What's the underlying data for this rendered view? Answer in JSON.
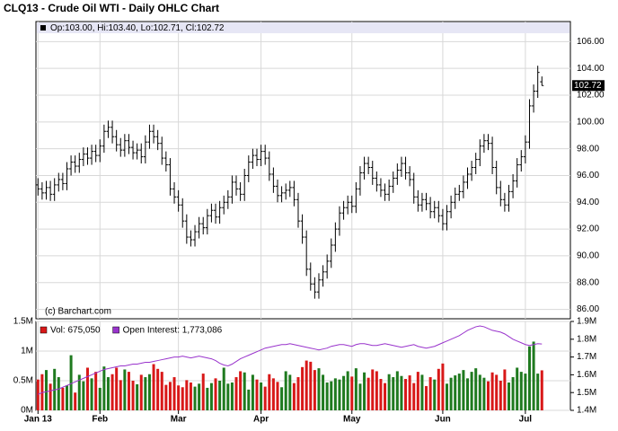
{
  "chart_data": [
    {
      "type": "ohlc",
      "title": "CLQ13 - Crude Oil WTI - Daily OHLC Chart",
      "legend": "Op:103.00, Hi:103.40, Lo:102.71, Cl:102.72",
      "last_label": "102.72",
      "source": "(c) Barchart.com",
      "color": "#000000",
      "legend_color": "#000000",
      "ylim": [
        85.3,
        107.5
      ],
      "yticks": [
        {
          "value": 86,
          "label": "86.00"
        },
        {
          "value": 88,
          "label": "88.00"
        },
        {
          "value": 90,
          "label": "90.00"
        },
        {
          "value": 92,
          "label": "92.00"
        },
        {
          "value": 94,
          "label": "94.00"
        },
        {
          "value": 96,
          "label": "96.00"
        },
        {
          "value": 98,
          "label": "98.00"
        },
        {
          "value": 100,
          "label": "100.00"
        },
        {
          "value": 102,
          "label": "102.00"
        },
        {
          "value": 104,
          "label": "104.00"
        },
        {
          "value": 106,
          "label": "106.00"
        }
      ],
      "grid": true,
      "open": [
        95.3,
        95.0,
        94.7,
        95.1,
        94.6,
        95.3,
        95.7,
        95.4,
        96.5,
        97.0,
        96.7,
        97.2,
        97.6,
        97.3,
        97.8,
        97.5,
        98.2,
        99.3,
        99.6,
        98.9,
        98.3,
        97.9,
        98.6,
        98.1,
        97.7,
        97.9,
        97.4,
        98.5,
        99.3,
        98.9,
        98.4,
        97.3,
        96.8,
        95.0,
        94.4,
        93.8,
        92.6,
        91.4,
        91.2,
        91.8,
        92.4,
        92.1,
        93.0,
        93.4,
        92.9,
        93.6,
        94.0,
        94.4,
        95.5,
        95.0,
        94.6,
        96.0,
        97.0,
        97.5,
        97.2,
        97.8,
        97.3,
        96.1,
        95.2,
        94.5,
        94.7,
        94.9,
        95.1,
        94.2,
        92.6,
        91.4,
        89.0,
        87.9,
        87.3,
        88.2,
        88.8,
        89.6,
        90.8,
        92.0,
        93.2,
        93.6,
        94.0,
        93.7,
        95.0,
        96.2,
        96.9,
        96.6,
        95.8,
        95.3,
        94.9,
        94.6,
        95.2,
        95.8,
        96.4,
        96.9,
        96.2,
        95.7,
        94.4,
        93.8,
        94.2,
        93.9,
        93.3,
        93.6,
        93.0,
        92.4,
        93.3,
        94.0,
        94.6,
        94.8,
        95.5,
        96.1,
        96.6,
        97.2,
        98.2,
        98.6,
        98.4,
        96.6,
        95.1,
        94.2,
        93.8,
        94.8,
        95.6,
        96.8,
        97.4,
        98.5,
        101.2,
        102.3,
        103.0
      ],
      "high": [
        95.8,
        95.5,
        95.6,
        95.6,
        95.8,
        96.2,
        96.2,
        97.0,
        97.5,
        97.5,
        97.7,
        98.1,
        98.1,
        98.3,
        98.3,
        98.7,
        99.8,
        100.1,
        100.1,
        99.4,
        98.8,
        99.1,
        99.1,
        98.6,
        98.4,
        98.4,
        99.0,
        99.8,
        99.8,
        99.4,
        98.9,
        97.8,
        97.3,
        95.5,
        94.9,
        94.3,
        93.1,
        91.9,
        92.3,
        92.9,
        92.9,
        93.5,
        93.9,
        93.9,
        94.1,
        94.5,
        94.9,
        96.0,
        96.0,
        95.5,
        96.5,
        97.5,
        98.0,
        98.0,
        98.3,
        98.3,
        97.8,
        96.6,
        95.7,
        95.2,
        95.4,
        95.6,
        95.6,
        94.7,
        93.1,
        91.9,
        89.5,
        88.4,
        88.7,
        89.3,
        90.1,
        91.3,
        92.5,
        93.7,
        94.1,
        94.5,
        94.5,
        95.5,
        96.7,
        97.4,
        97.4,
        97.1,
        96.3,
        95.8,
        95.4,
        95.7,
        96.3,
        96.9,
        97.4,
        97.4,
        96.7,
        96.2,
        94.9,
        94.7,
        94.7,
        94.4,
        94.1,
        94.1,
        93.5,
        93.8,
        94.5,
        95.1,
        95.3,
        96.0,
        96.6,
        97.1,
        97.7,
        98.7,
        99.1,
        99.1,
        98.9,
        97.1,
        95.6,
        94.7,
        95.3,
        96.1,
        97.3,
        97.9,
        99.0,
        101.7,
        102.8,
        104.2,
        103.4
      ],
      "low": [
        94.5,
        94.2,
        94.2,
        94.1,
        94.1,
        94.8,
        94.9,
        94.9,
        96.0,
        96.2,
        96.2,
        96.7,
        96.8,
        96.8,
        97.0,
        97.0,
        97.7,
        98.8,
        98.4,
        97.8,
        97.4,
        97.4,
        97.6,
        97.2,
        97.2,
        96.9,
        96.9,
        98.0,
        98.4,
        97.9,
        96.8,
        96.3,
        94.5,
        93.9,
        93.3,
        92.1,
        90.9,
        90.7,
        90.7,
        91.3,
        91.6,
        91.6,
        92.5,
        92.4,
        92.4,
        93.1,
        93.5,
        93.9,
        94.5,
        94.1,
        94.1,
        95.5,
        96.5,
        96.7,
        96.7,
        96.8,
        95.6,
        94.7,
        94.0,
        94.0,
        94.2,
        94.4,
        93.7,
        92.1,
        90.9,
        88.5,
        87.4,
        86.8,
        86.8,
        87.7,
        88.3,
        89.1,
        90.3,
        91.5,
        92.7,
        93.1,
        93.2,
        93.2,
        94.5,
        95.7,
        96.1,
        95.3,
        94.8,
        94.4,
        94.1,
        94.1,
        94.7,
        95.3,
        95.9,
        95.7,
        95.2,
        93.9,
        93.3,
        93.3,
        93.4,
        92.8,
        92.8,
        92.5,
        91.9,
        91.9,
        92.8,
        93.5,
        94.1,
        94.3,
        95.0,
        95.6,
        96.1,
        96.7,
        97.7,
        97.9,
        96.1,
        94.6,
        93.7,
        93.3,
        93.3,
        94.3,
        95.1,
        96.3,
        96.9,
        98.0,
        100.7,
        101.8,
        102.71
      ],
      "close": [
        95.0,
        94.7,
        95.1,
        94.6,
        95.3,
        95.7,
        95.4,
        96.5,
        97.0,
        96.7,
        97.2,
        97.6,
        97.3,
        97.8,
        97.5,
        98.2,
        99.3,
        99.6,
        98.9,
        98.3,
        97.9,
        98.6,
        98.1,
        97.7,
        97.9,
        97.4,
        98.5,
        99.3,
        98.9,
        98.4,
        97.3,
        96.8,
        95.0,
        94.4,
        93.8,
        92.6,
        91.4,
        91.2,
        91.8,
        92.4,
        92.1,
        93.0,
        93.4,
        92.9,
        93.6,
        94.0,
        94.4,
        95.5,
        95.0,
        94.6,
        96.0,
        97.0,
        97.5,
        97.2,
        97.8,
        97.3,
        96.1,
        95.2,
        94.5,
        94.7,
        94.9,
        95.1,
        94.2,
        92.6,
        91.4,
        89.0,
        87.9,
        87.3,
        88.2,
        88.8,
        89.6,
        90.8,
        92.0,
        93.2,
        93.6,
        94.0,
        93.7,
        95.0,
        96.2,
        96.9,
        96.6,
        95.8,
        95.3,
        94.9,
        94.6,
        95.2,
        95.8,
        96.4,
        96.9,
        96.2,
        95.7,
        94.4,
        93.8,
        94.2,
        93.9,
        93.3,
        93.6,
        93.0,
        92.4,
        93.3,
        94.0,
        94.6,
        94.8,
        95.5,
        96.1,
        96.6,
        97.2,
        98.2,
        98.6,
        98.4,
        96.6,
        95.1,
        94.2,
        93.8,
        94.8,
        95.6,
        96.8,
        97.4,
        98.5,
        101.2,
        102.3,
        103.7,
        102.72
      ]
    },
    {
      "type": "volume",
      "xlim": [
        -0.5,
        128.9
      ],
      "xticks": [
        {
          "value": 0,
          "label": "Jan 13"
        },
        {
          "value": 15,
          "label": "Feb"
        },
        {
          "value": 34,
          "label": "Mar"
        },
        {
          "value": 54,
          "label": "Apr"
        },
        {
          "value": 76,
          "label": "May"
        },
        {
          "value": 98,
          "label": "Jun"
        },
        {
          "value": 118,
          "label": "Jul"
        }
      ],
      "ylim": [
        0,
        1500000
      ],
      "yticks": [
        {
          "value": 0,
          "label": "0M"
        },
        {
          "value": 500000,
          "label": "0.5M"
        },
        {
          "value": 1000000,
          "label": "1M"
        },
        {
          "value": 1500000,
          "label": "1.5M"
        }
      ],
      "y2lim": [
        1400000,
        1900000
      ],
      "y2ticks": [
        {
          "value": 1400000,
          "label": "1.4M"
        },
        {
          "value": 1500000,
          "label": "1.5M"
        },
        {
          "value": 1600000,
          "label": "1.6M"
        },
        {
          "value": 1700000,
          "label": "1.7M"
        },
        {
          "value": 1800000,
          "label": "1.8M"
        },
        {
          "value": 1900000,
          "label": "1.9M"
        }
      ],
      "grid": true,
      "series": [
        {
          "name": "Vol: 675,050",
          "color": "#d81818",
          "up_color": "#1f7a1f",
          "values": [
            520000,
            610000,
            680000,
            450000,
            700000,
            560000,
            380000,
            420000,
            930000,
            300000,
            600000,
            490000,
            720000,
            540000,
            650000,
            380000,
            740000,
            560000,
            610000,
            720000,
            510000,
            690000,
            650000,
            500000,
            440000,
            600000,
            560000,
            610000,
            780000,
            700000,
            650000,
            430000,
            480000,
            560000,
            420000,
            390000,
            510000,
            470000,
            400000,
            450000,
            620000,
            380000,
            460000,
            540000,
            500000,
            720000,
            450000,
            470000,
            560000,
            660000,
            640000,
            350000,
            600000,
            520000,
            470000,
            400000,
            610000,
            540000,
            480000,
            390000,
            660000,
            600000,
            460000,
            560000,
            730000,
            840000,
            820000,
            680000,
            710000,
            600000,
            470000,
            490000,
            540000,
            520000,
            580000,
            660000,
            570000,
            710000,
            450000,
            640000,
            550000,
            690000,
            660000,
            530000,
            460000,
            610000,
            560000,
            660000,
            580000,
            530000,
            590000,
            460000,
            650000,
            600000,
            410000,
            560000,
            520000,
            700000,
            790000,
            450000,
            550000,
            590000,
            620000,
            680000,
            540000,
            650000,
            710000,
            600000,
            550000,
            490000,
            640000,
            600000,
            500000,
            690000,
            470000,
            560000,
            720000,
            650000,
            620000,
            1080000,
            1160000,
            620000,
            675050
          ]
        },
        {
          "name": "Open Interest: 1,773,086",
          "color": "#9933cc",
          "axis": "y2",
          "values": [
            1490000,
            1500000,
            1505000,
            1510000,
            1515000,
            1520000,
            1530000,
            1540000,
            1550000,
            1560000,
            1570000,
            1580000,
            1590000,
            1600000,
            1610000,
            1620000,
            1630000,
            1635000,
            1640000,
            1645000,
            1650000,
            1650000,
            1655000,
            1660000,
            1660000,
            1665000,
            1670000,
            1670000,
            1675000,
            1680000,
            1685000,
            1690000,
            1695000,
            1700000,
            1700000,
            1705000,
            1700000,
            1695000,
            1700000,
            1705000,
            1700000,
            1695000,
            1690000,
            1680000,
            1665000,
            1655000,
            1650000,
            1660000,
            1675000,
            1690000,
            1700000,
            1710000,
            1720000,
            1730000,
            1740000,
            1750000,
            1755000,
            1760000,
            1765000,
            1770000,
            1770000,
            1775000,
            1770000,
            1765000,
            1760000,
            1755000,
            1750000,
            1745000,
            1740000,
            1745000,
            1750000,
            1760000,
            1765000,
            1770000,
            1770000,
            1765000,
            1760000,
            1770000,
            1775000,
            1775000,
            1770000,
            1765000,
            1765000,
            1770000,
            1775000,
            1770000,
            1765000,
            1760000,
            1755000,
            1760000,
            1765000,
            1770000,
            1760000,
            1755000,
            1750000,
            1755000,
            1760000,
            1770000,
            1780000,
            1790000,
            1800000,
            1810000,
            1820000,
            1835000,
            1850000,
            1860000,
            1870000,
            1875000,
            1870000,
            1860000,
            1850000,
            1845000,
            1840000,
            1830000,
            1815000,
            1800000,
            1790000,
            1780000,
            1770000,
            1765000,
            1770000,
            1775000,
            1773086
          ]
        }
      ]
    }
  ]
}
